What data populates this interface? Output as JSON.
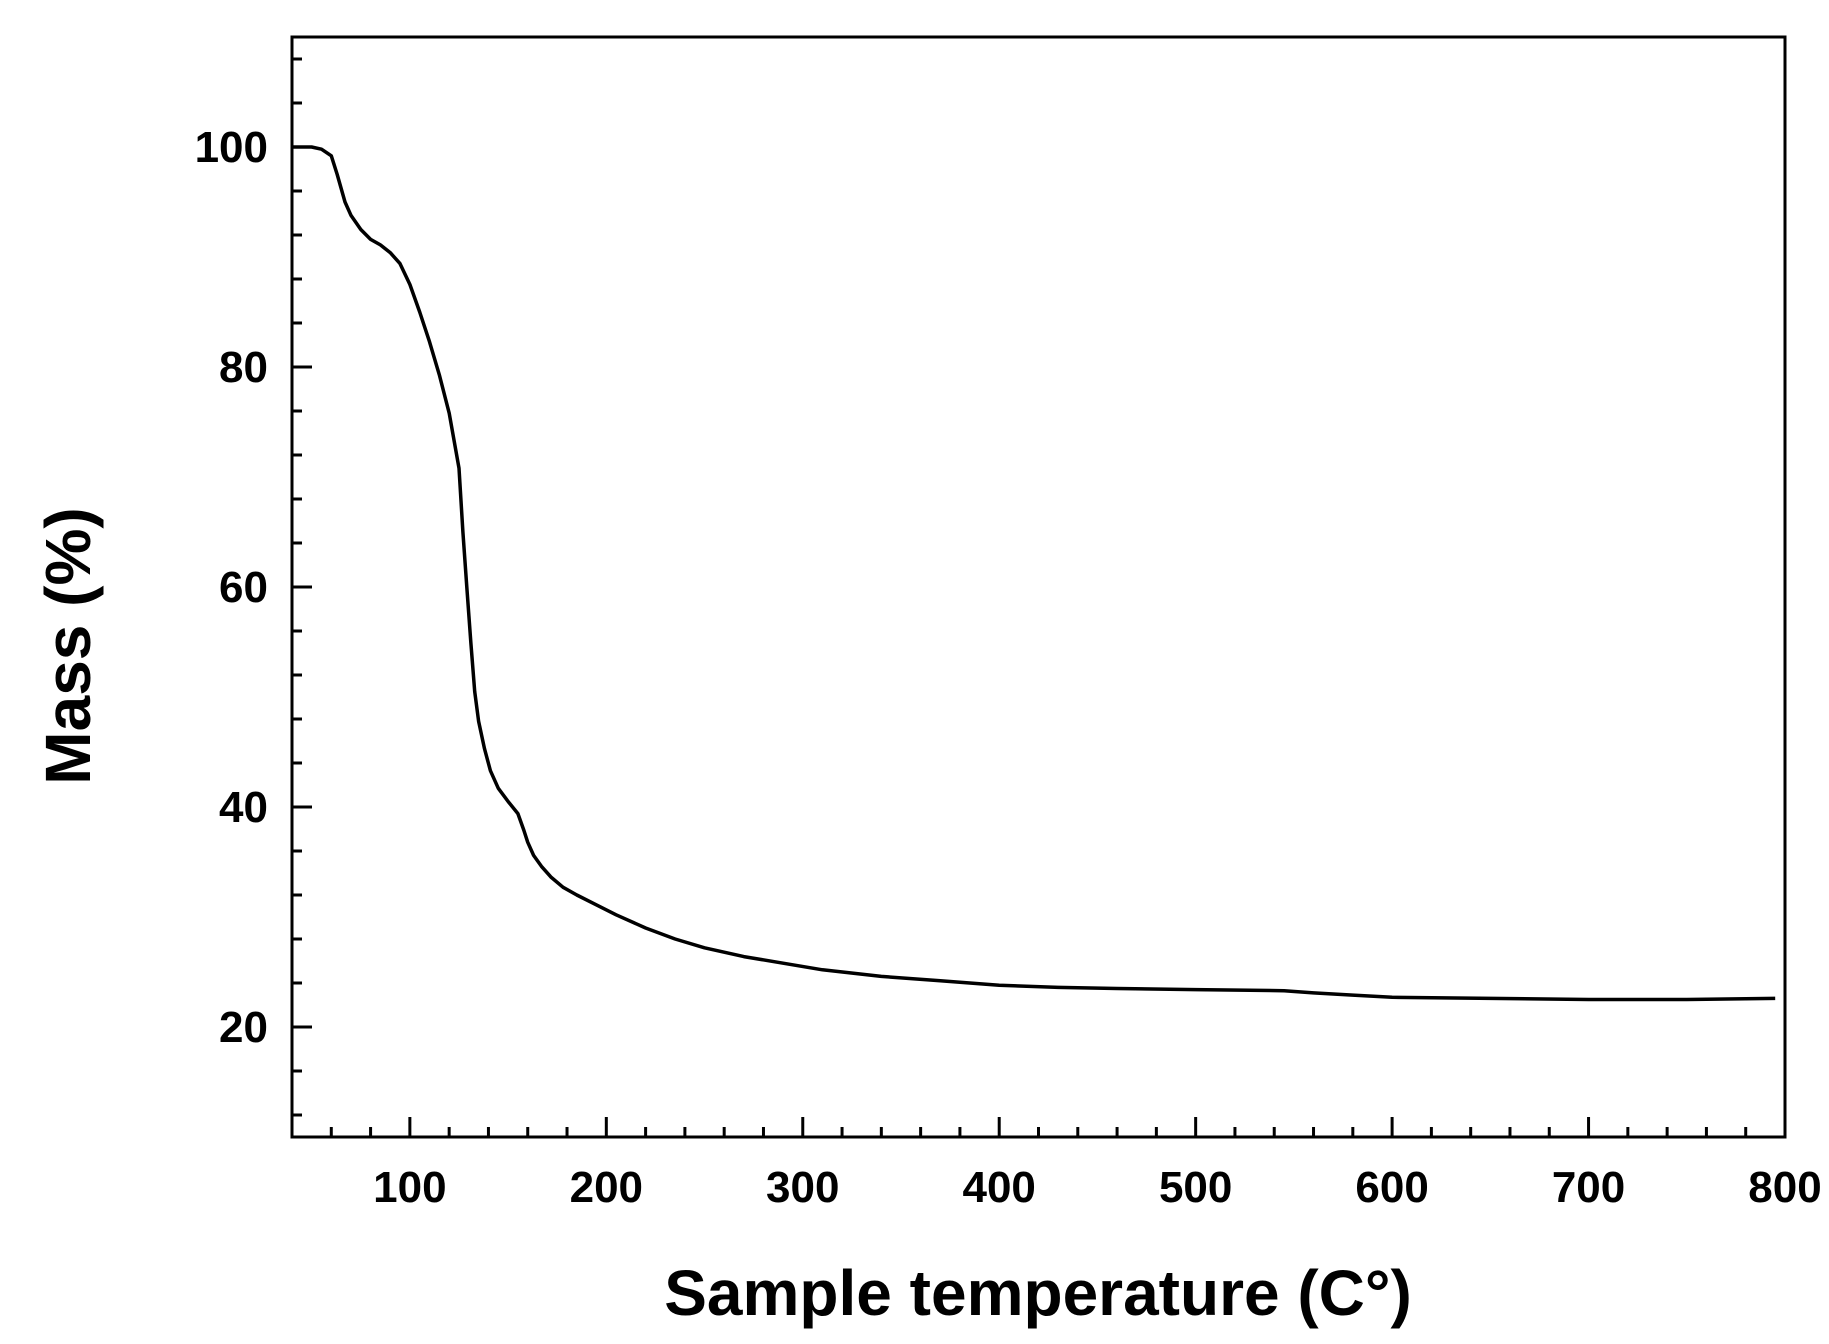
{
  "chart_data": {
    "type": "line",
    "title": "",
    "xlabel": "Sample temperature (C°)",
    "ylabel": "Mass (%)",
    "xlim": [
      40,
      800
    ],
    "ylim": [
      10,
      110
    ],
    "xticks": [
      100,
      200,
      300,
      400,
      500,
      600,
      700,
      800
    ],
    "yticks": [
      20,
      40,
      60,
      80,
      100
    ],
    "x_minor_step": 20,
    "y_minor_step": 4,
    "grid": false,
    "legend": "none",
    "line_color": "#000000",
    "series": [
      {
        "x": [
          40,
          50,
          55,
          60,
          63,
          67,
          70,
          75,
          80,
          85,
          90,
          95,
          100,
          105,
          110,
          115,
          120,
          125,
          127,
          129,
          131,
          133,
          135,
          138,
          141,
          145,
          150,
          155,
          158,
          160,
          163,
          167,
          172,
          178,
          185,
          195,
          205,
          220,
          235,
          250,
          270,
          290,
          310,
          340,
          370,
          400,
          430,
          460,
          500,
          545,
          560,
          580,
          600,
          650,
          700,
          750,
          795
        ],
        "y": [
          100,
          100,
          99.8,
          99.2,
          97.5,
          95,
          93.8,
          92.5,
          91.6,
          91.1,
          90.4,
          89.4,
          87.5,
          85,
          82.3,
          79.3,
          75.8,
          70.8,
          65,
          60,
          55,
          50.5,
          47.8,
          45.3,
          43.3,
          41.7,
          40.5,
          39.4,
          37.9,
          36.8,
          35.6,
          34.6,
          33.6,
          32.7,
          32,
          31.1,
          30.2,
          29,
          28,
          27.2,
          26.4,
          25.8,
          25.2,
          24.6,
          24.2,
          23.8,
          23.6,
          23.5,
          23.4,
          23.3,
          23.1,
          22.9,
          22.7,
          22.6,
          22.5,
          22.5,
          22.6
        ]
      }
    ]
  }
}
